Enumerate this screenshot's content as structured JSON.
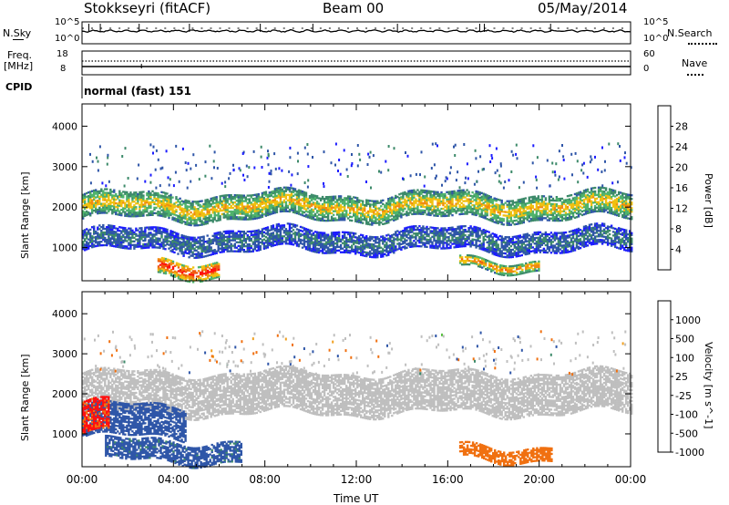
{
  "header": {
    "station": "Stokkseyri (fitACF)",
    "beam": "Beam 00",
    "date": "05/May/2014"
  },
  "noise_panel": {
    "left_label": "N.Sky",
    "right_label": "N.Search",
    "left_ticks": [
      "10^5",
      "10^0"
    ],
    "right_ticks": [
      "10^5",
      "10^0"
    ]
  },
  "freq_panel": {
    "left_label_1": "Freq.",
    "left_label_2": "[MHz]",
    "right_label": "Nave",
    "left_ticks": [
      "18",
      "8"
    ],
    "right_ticks": [
      "60",
      "0"
    ]
  },
  "cpid": {
    "label": "CPID",
    "value": "normal (fast) 151"
  },
  "colors": {
    "power_scale": [
      "#1c1cff",
      "#2f56a8",
      "#3d8a6a",
      "#4fb36c",
      "#f0c010",
      "#f08a10",
      "#f05a10",
      "#ff1010"
    ],
    "velocity_scale": [
      "#1030d0",
      "#2f56a8",
      "#3d8a6a",
      "#58c040",
      "#bfbfbf",
      "#f0a020",
      "#f07010",
      "#ff1010"
    ],
    "ground_scatter": "#bfbfbf"
  },
  "chart_data": [
    {
      "type": "heatmap",
      "title": "",
      "xlabel": "",
      "ylabel": "Slant Range [km]",
      "x_ticks": [
        "00:00",
        "04:00",
        "08:00",
        "12:00",
        "16:00",
        "20:00",
        "00:00"
      ],
      "y_ticks": [
        1000,
        2000,
        3000,
        4000
      ],
      "ylim": [
        180,
        4550
      ],
      "colorbar_label": "Power [dB]",
      "colorbar_ticks": [
        4,
        8,
        12,
        16,
        20,
        24,
        28
      ],
      "colorbar_range": [
        0,
        32
      ],
      "features": [
        {
          "t_start": 0.0,
          "t_end": 24.0,
          "range_km_lower": 1700,
          "range_km_upper": 2300,
          "power_dB": 18
        },
        {
          "t_start": 0.0,
          "t_end": 24.0,
          "range_km_lower": 900,
          "range_km_upper": 1400,
          "power_dB": 8
        },
        {
          "t_start": 3.3,
          "t_end": 6.0,
          "range_km_lower": 300,
          "range_km_upper": 700,
          "power_dB": 28
        },
        {
          "t_start": 16.5,
          "t_end": 20.0,
          "range_km_lower": 450,
          "range_km_upper": 700,
          "power_dB": 22
        }
      ]
    },
    {
      "type": "heatmap",
      "title": "",
      "xlabel": "Time UT",
      "ylabel": "Slant Range [km]",
      "x_ticks": [
        "00:00",
        "04:00",
        "08:00",
        "12:00",
        "16:00",
        "20:00",
        "00:00"
      ],
      "y_ticks": [
        1000,
        2000,
        3000,
        4000
      ],
      "ylim": [
        180,
        4550
      ],
      "colorbar_label": "Velocity [m s^-1]",
      "colorbar_ticks": [
        1000,
        500,
        100,
        25,
        -25,
        -100,
        -500,
        -1000
      ],
      "features": [
        {
          "t_start": 0.0,
          "t_end": 24.0,
          "range_km_lower": 1500,
          "range_km_upper": 2500,
          "velocity_ms": 0
        },
        {
          "t_start": 0.0,
          "t_end": 4.5,
          "range_km_lower": 900,
          "range_km_upper": 1700,
          "velocity_ms": 200
        },
        {
          "t_start": 0.0,
          "t_end": 1.2,
          "range_km_lower": 1000,
          "range_km_upper": 1800,
          "velocity_ms": -600
        },
        {
          "t_start": 1.0,
          "t_end": 7.0,
          "range_km_lower": 300,
          "range_km_upper": 800,
          "velocity_ms": 150
        },
        {
          "t_start": 16.5,
          "t_end": 20.5,
          "range_km_lower": 350,
          "range_km_upper": 700,
          "velocity_ms": -300
        }
      ]
    }
  ]
}
